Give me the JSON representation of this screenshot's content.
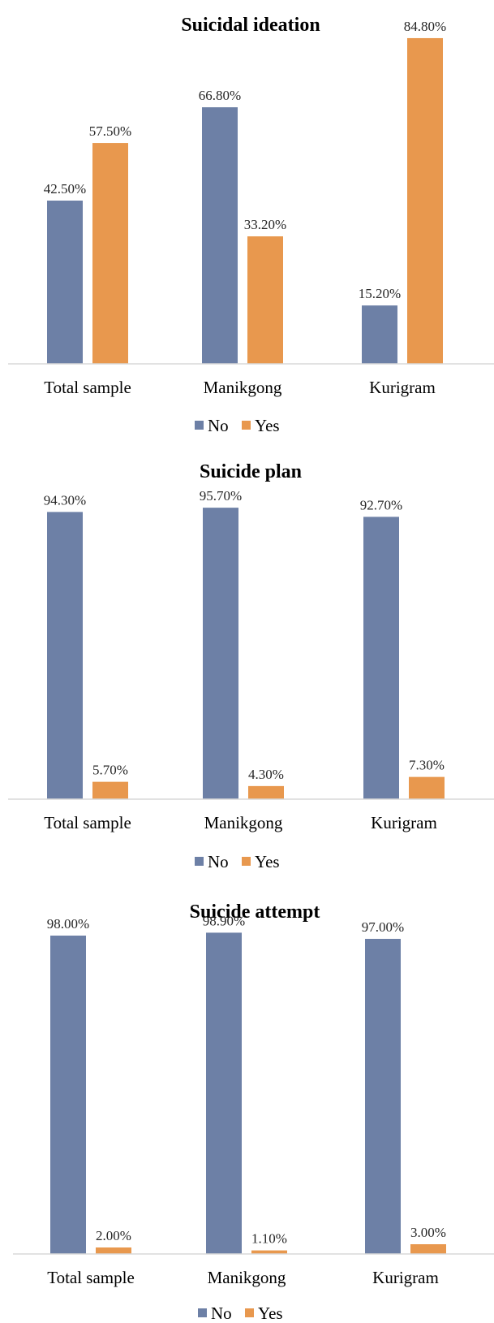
{
  "chart_data": [
    {
      "type": "bar",
      "title": "Suicidal ideation",
      "xlabel": "",
      "ylabel": "",
      "categories": [
        "Total sample",
        "Manikgong",
        "Kurigram"
      ],
      "series": [
        {
          "name": "No",
          "values": [
            42.5,
            66.8,
            15.2
          ],
          "labels": [
            "42.50%",
            "66.80%",
            "15.20%"
          ],
          "color": "#6D80A6"
        },
        {
          "name": "Yes",
          "values": [
            57.5,
            33.2,
            84.8
          ],
          "labels": [
            "57.50%",
            "33.20%",
            "84.80%"
          ],
          "color": "#E8984E"
        }
      ],
      "ylim": [
        0,
        85
      ],
      "grid": false,
      "legend": "bottom"
    },
    {
      "type": "bar",
      "title": "Suicide plan",
      "xlabel": "",
      "ylabel": "",
      "categories": [
        "Total sample",
        "Manikgong",
        "Kurigram"
      ],
      "series": [
        {
          "name": "No",
          "values": [
            94.3,
            95.7,
            92.7
          ],
          "labels": [
            "94.30%",
            "95.70%",
            "92.70%"
          ],
          "color": "#6D80A6"
        },
        {
          "name": "Yes",
          "values": [
            5.7,
            4.3,
            7.3
          ],
          "labels": [
            "5.70%",
            "4.30%",
            "7.30%"
          ],
          "color": "#E8984E"
        }
      ],
      "ylim": [
        0,
        96
      ],
      "grid": false,
      "legend": "bottom"
    },
    {
      "type": "bar",
      "title": "Suicide attempt",
      "xlabel": "",
      "ylabel": "",
      "categories": [
        "Total sample",
        "Manikgong",
        "Kurigram"
      ],
      "series": [
        {
          "name": "No",
          "values": [
            98.0,
            98.9,
            97.0
          ],
          "labels": [
            "98.00%",
            "98.90%",
            "97.00%"
          ],
          "color": "#6D80A6"
        },
        {
          "name": "Yes",
          "values": [
            2.0,
            1.1,
            3.0
          ],
          "labels": [
            "2.00%",
            "1.10%",
            "3.00%"
          ],
          "color": "#E8984E"
        }
      ],
      "ylim": [
        0,
        99
      ],
      "grid": false,
      "legend": "bottom"
    }
  ]
}
